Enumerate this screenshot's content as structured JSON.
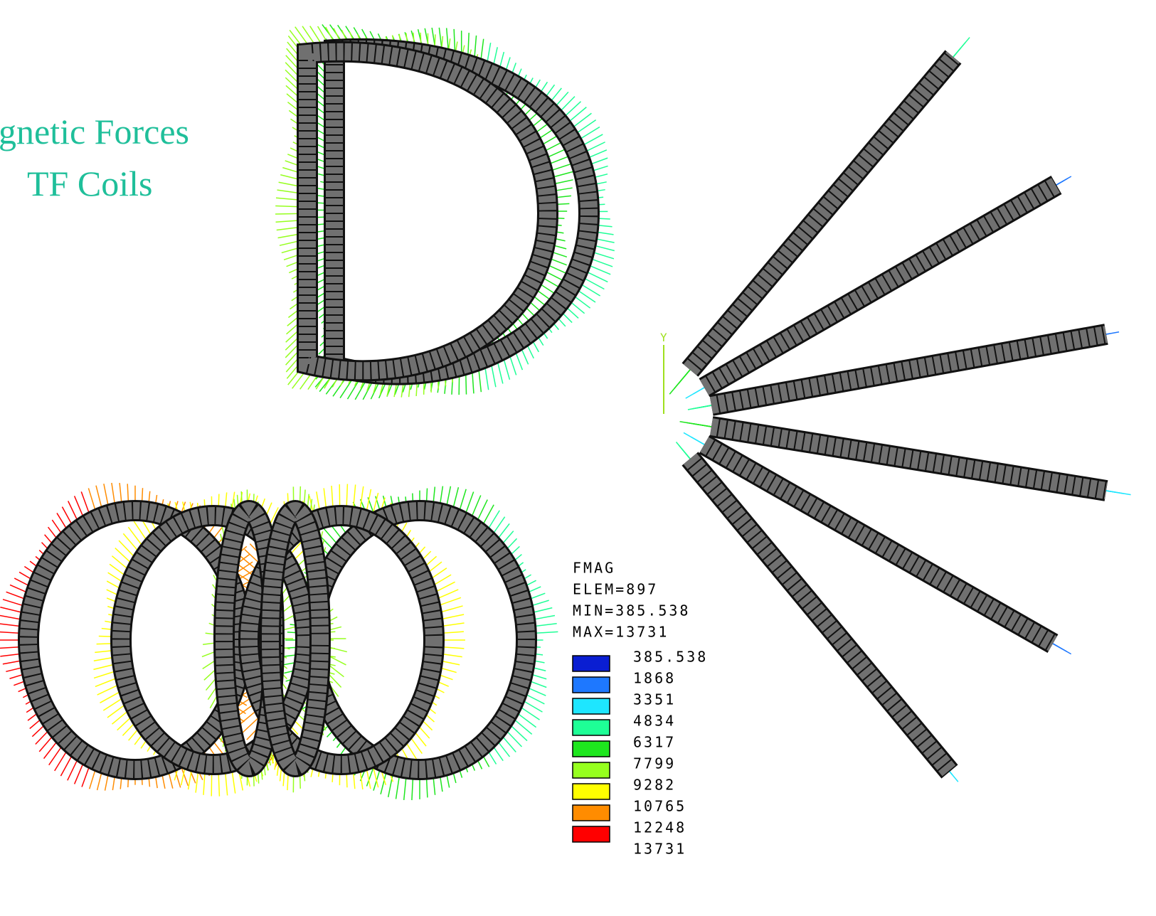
{
  "title": {
    "line1": "gnetic Forces",
    "line2": "TF Coils"
  },
  "axis_label": "Y",
  "legend": {
    "quantity": "FMAG",
    "elem": "ELEM=897",
    "min": "MIN=385.538",
    "max": "MAX=13731",
    "levels": [
      "385.538",
      "1868",
      "3351",
      "4834",
      "6317",
      "7799",
      "9282",
      "10765",
      "12248",
      "13731"
    ],
    "colors": [
      "#0a1ed2",
      "#1e78ff",
      "#1ee6ff",
      "#1eff96",
      "#1ee61e",
      "#96ff1e",
      "#ffff00",
      "#ff8c00",
      "#ff0000"
    ]
  }
}
